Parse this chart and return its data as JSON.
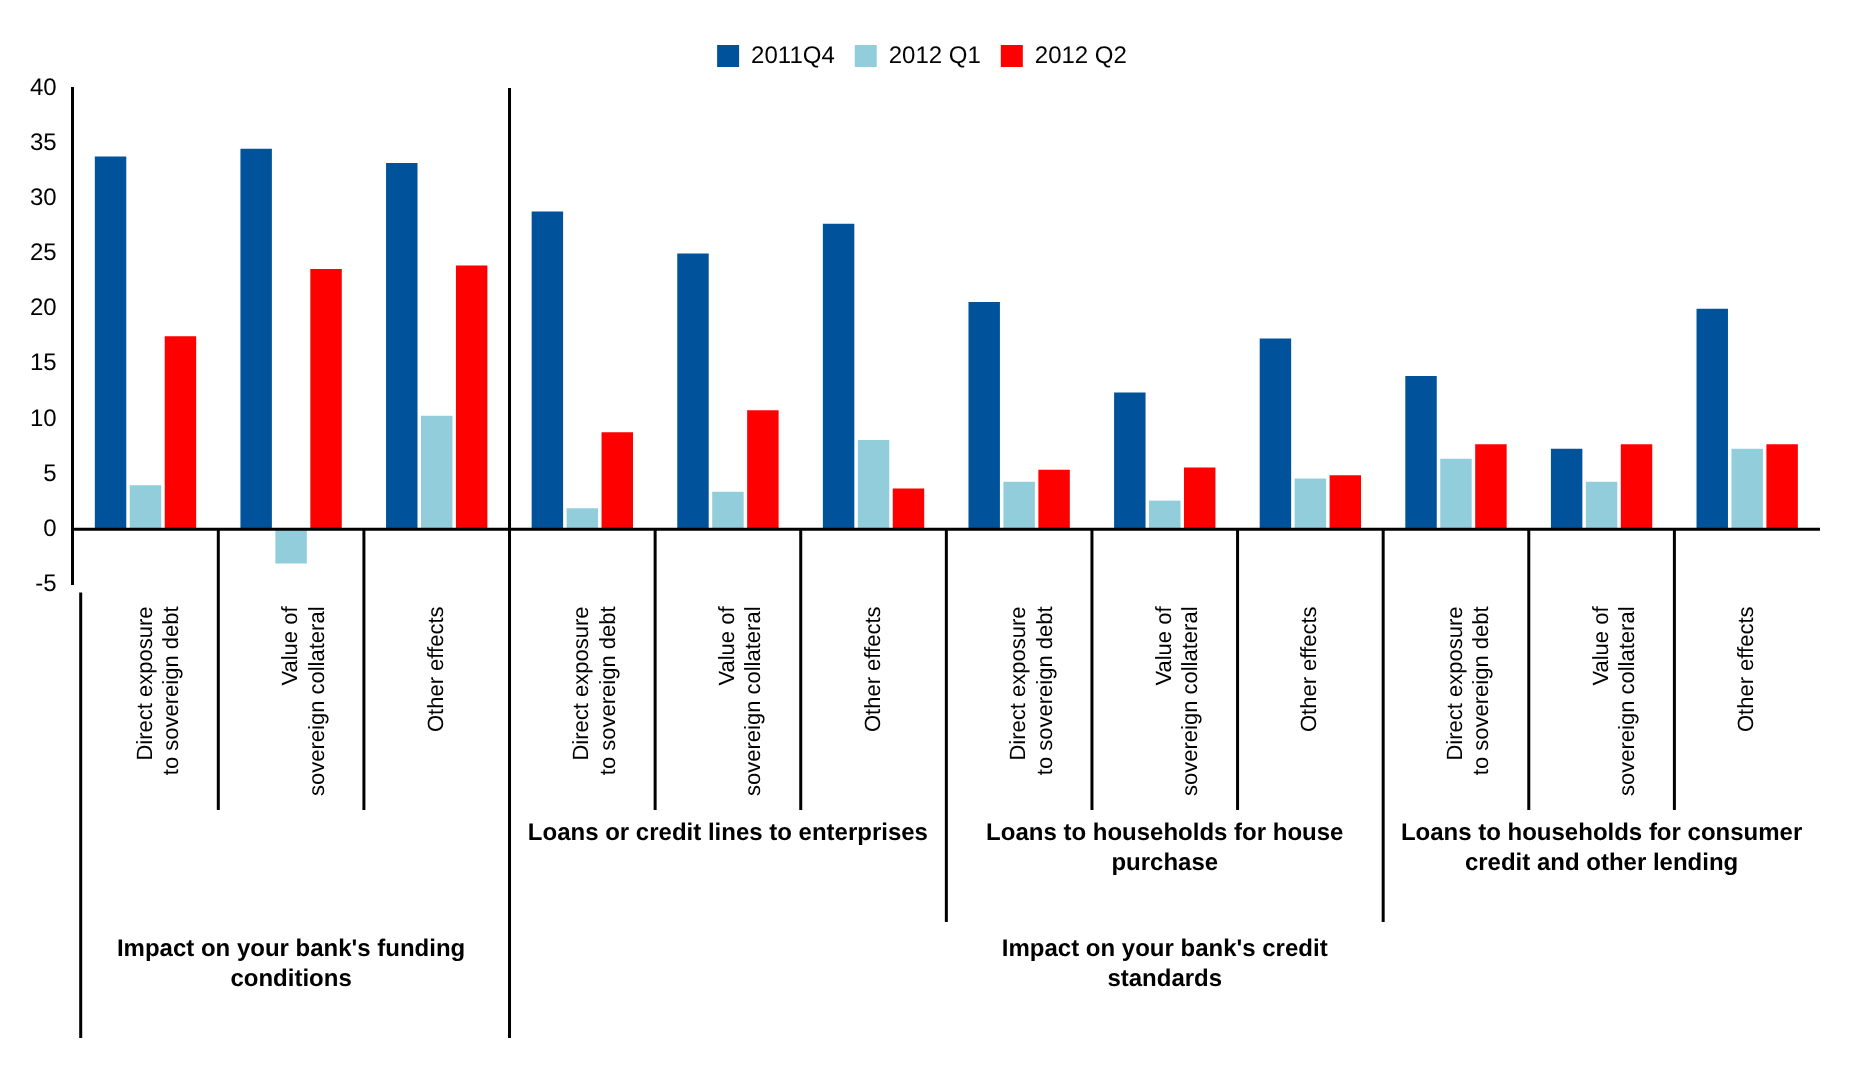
{
  "chart_data": {
    "type": "bar",
    "categories": [
      "Direct exposure\nto sovereign debt",
      "Value of\nsovereign collateral",
      "Other effects",
      "Direct exposure\nto sovereign debt",
      "Value of\nsovereign collateral",
      "Other effects",
      "Direct exposure\nto sovereign debt",
      "Value of\nsovereign collateral",
      "Other effects",
      "Direct exposure\nto sovereign debt",
      "Value of\nsovereign collateral",
      "Other effects"
    ],
    "series": [
      {
        "name": "2011Q4",
        "color": "#00539b",
        "values": [
          33.8,
          34.5,
          33.2,
          28.8,
          25.0,
          27.7,
          20.6,
          12.4,
          17.3,
          13.9,
          7.3,
          20.0
        ]
      },
      {
        "name": "2012 Q1",
        "color": "#92cddc",
        "values": [
          4.0,
          -3.1,
          10.3,
          1.9,
          3.4,
          8.1,
          4.3,
          2.6,
          4.6,
          6.4,
          4.3,
          7.3
        ]
      },
      {
        "name": "2012 Q2",
        "color": "#ff0000",
        "values": [
          17.5,
          23.6,
          23.9,
          8.8,
          10.8,
          3.7,
          5.4,
          5.6,
          4.9,
          7.7,
          7.7,
          7.7
        ]
      }
    ],
    "ylim": [
      -5,
      40
    ],
    "yticks": [
      -5,
      0,
      5,
      10,
      15,
      20,
      25,
      30,
      35,
      40
    ],
    "legend": "top",
    "annotations": [
      "Loans or credit lines to enterprises",
      "Loans to households for house purchase",
      "Loans to households for consumer credit and other lending",
      "Impact on your bank's funding conditions",
      "Impact on your bank's credit standards"
    ]
  }
}
